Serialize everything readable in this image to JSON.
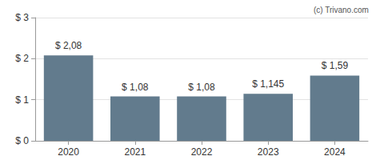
{
  "chart_data": {
    "type": "bar",
    "annotations": [
      "(c) Trivano.com"
    ],
    "categories": [
      "2020",
      "2021",
      "2022",
      "2023",
      "2024"
    ],
    "values": [
      2.08,
      1.08,
      1.08,
      1.145,
      1.59
    ],
    "value_labels": [
      "$ 2,08",
      "$ 1,08",
      "$ 1,08",
      "$ 1,145",
      "$ 1,59"
    ],
    "data_labels": true,
    "color": "#627b8d",
    "ylim": [
      0,
      3
    ],
    "yticks": [
      {
        "value": 0,
        "label": "$ 0"
      },
      {
        "value": 1,
        "label": "$ 1"
      },
      {
        "value": 2,
        "label": "$ 2"
      },
      {
        "value": 3,
        "label": "$ 3"
      }
    ],
    "grid": true
  }
}
